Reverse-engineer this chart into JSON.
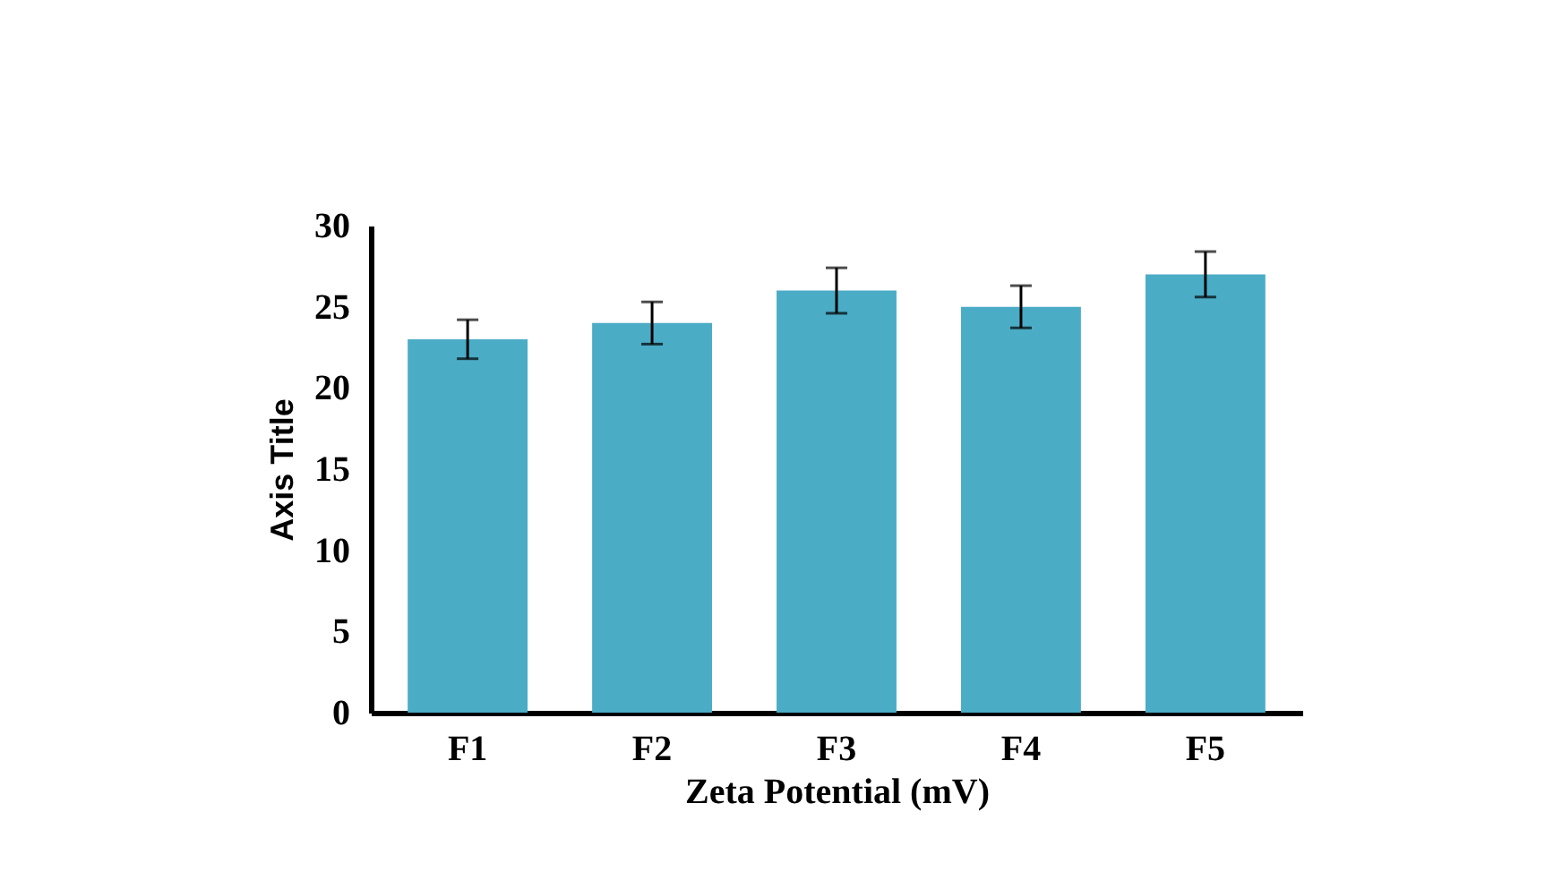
{
  "chart_data": {
    "type": "bar",
    "xlabel": "Zeta Potential  (mV)",
    "ylabel": "Axis Title",
    "categories": [
      "F1",
      "F2",
      "F3",
      "F4",
      "F5"
    ],
    "values": [
      23,
      24,
      26,
      25,
      27
    ],
    "errors": [
      1.2,
      1.3,
      1.4,
      1.3,
      1.4
    ],
    "color": "#4bacc6",
    "ylim": [
      0,
      30
    ],
    "yticks": [
      0,
      5,
      10,
      15,
      20,
      25,
      30
    ],
    "grid": false
  }
}
